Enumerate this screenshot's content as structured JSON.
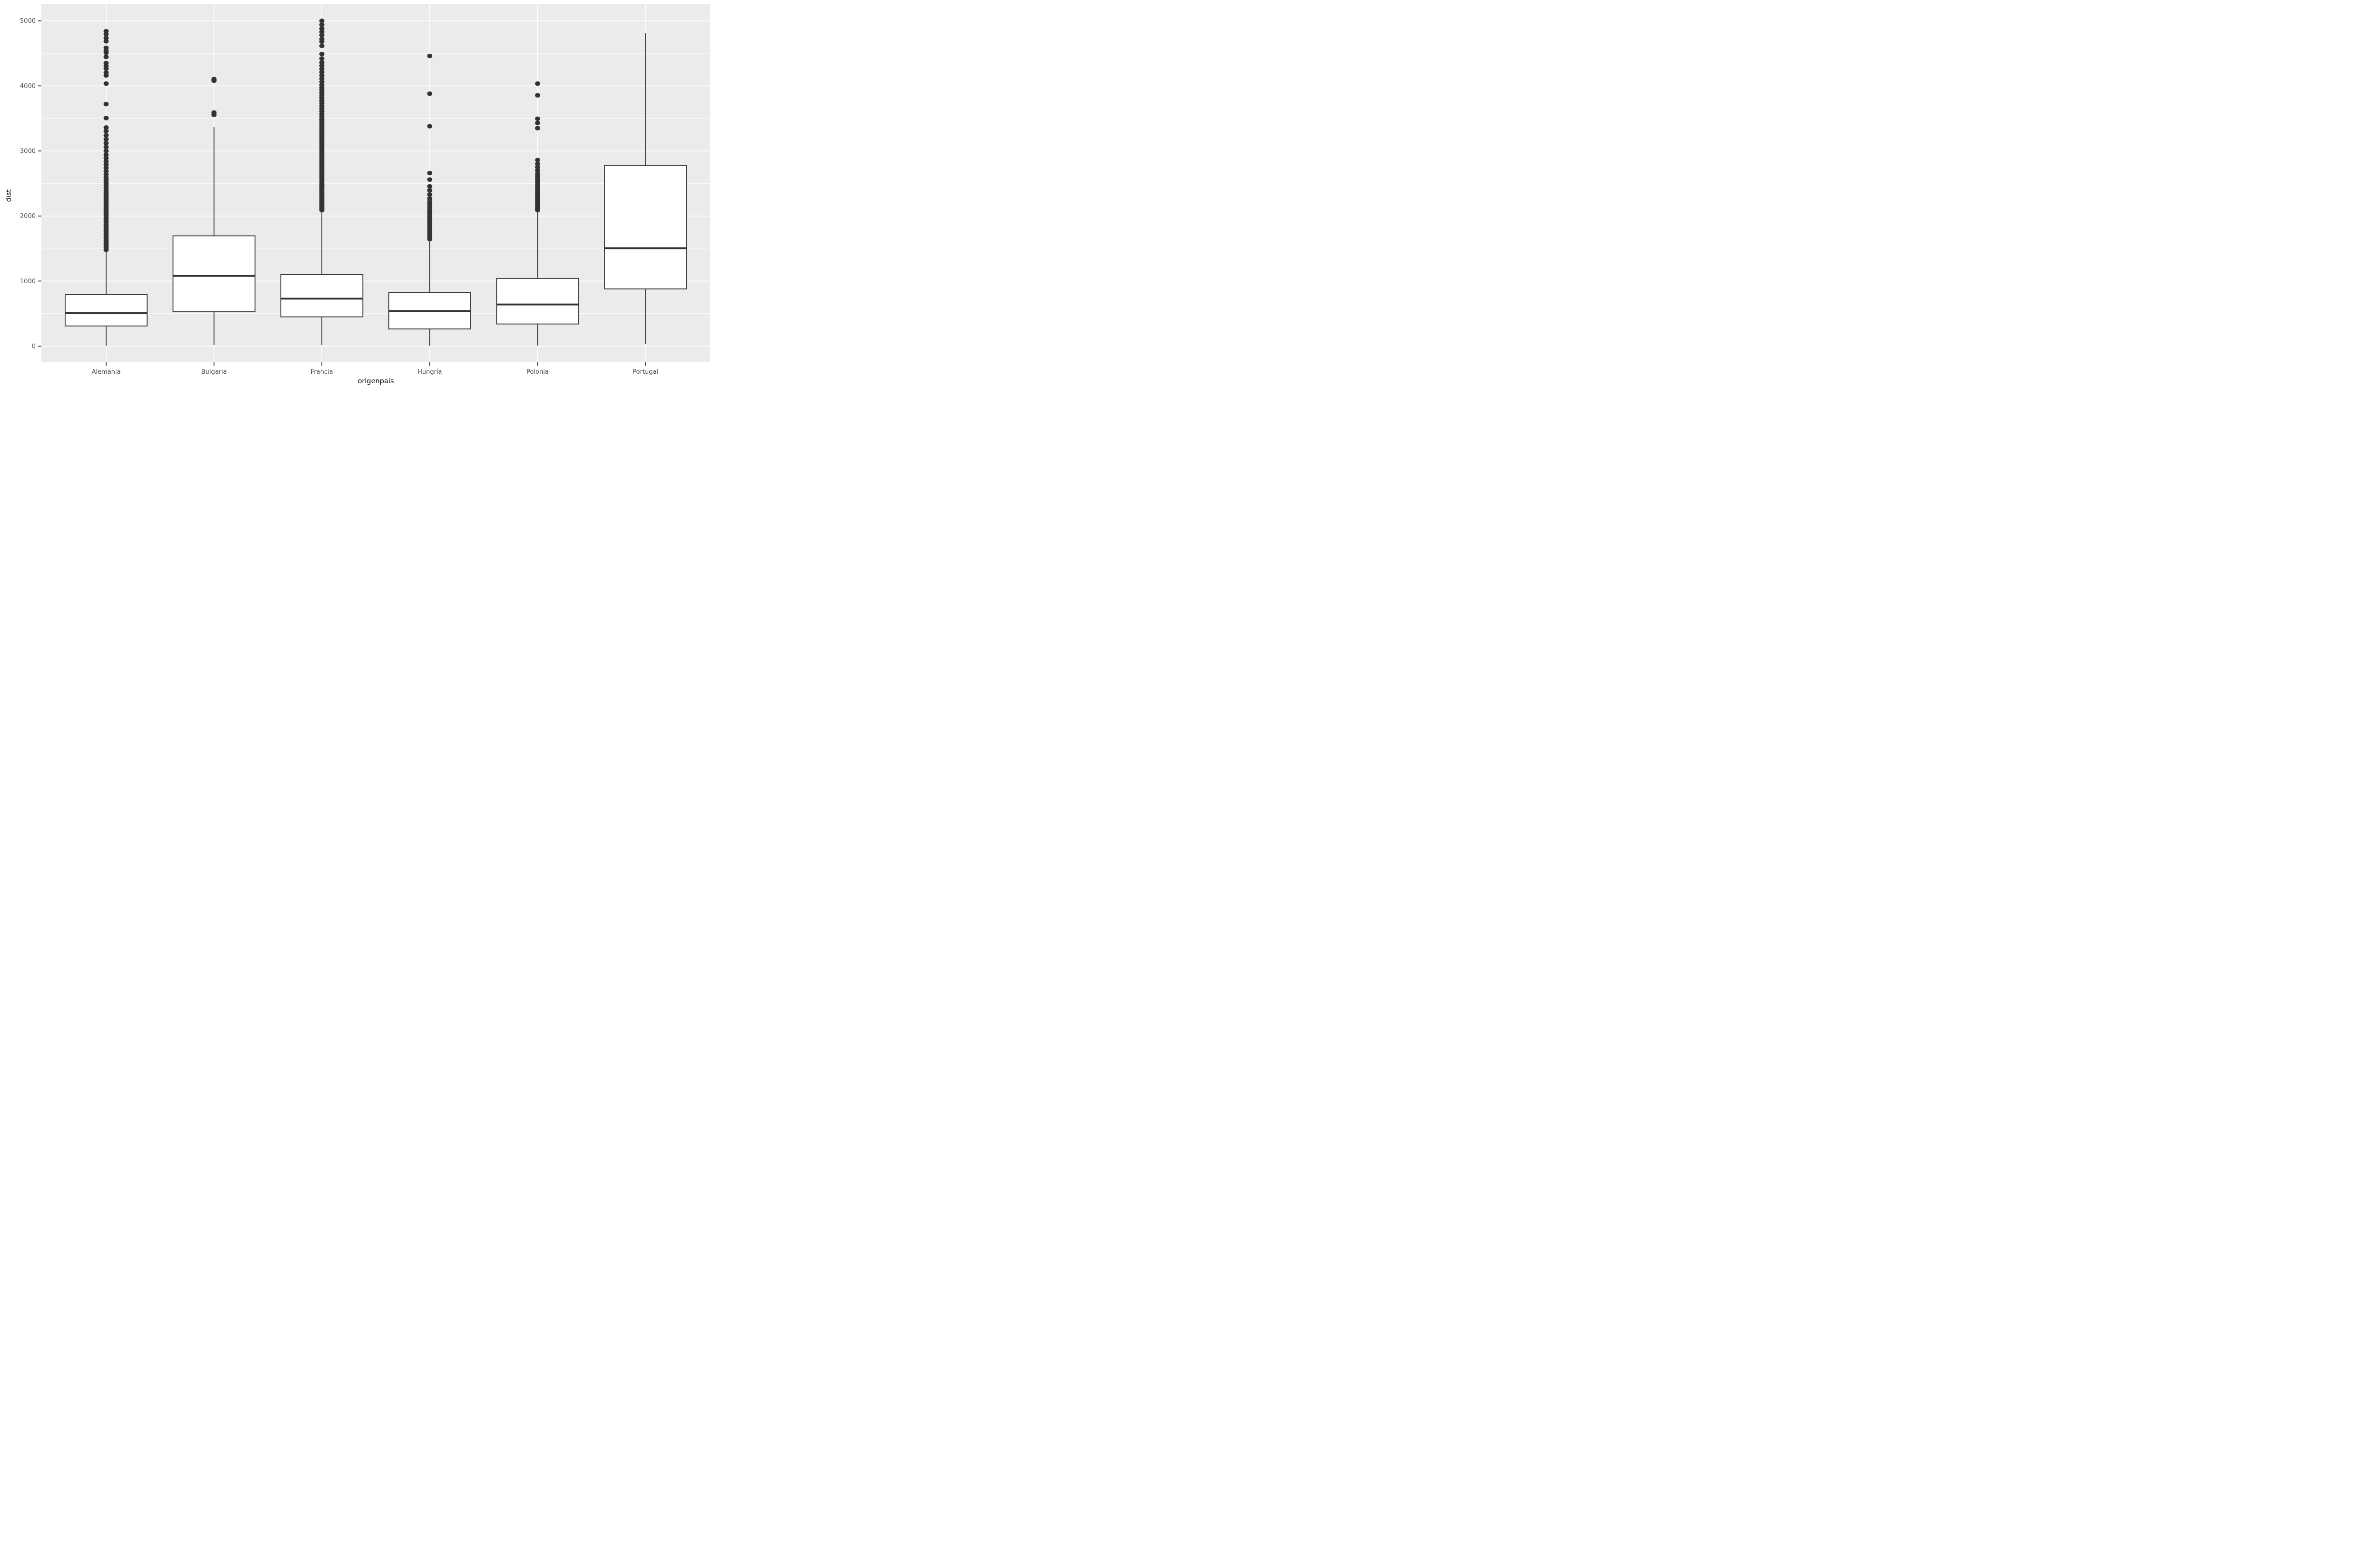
{
  "style": {
    "panel_bg": "#EBEBEB",
    "grid_color": "#FFFFFF",
    "box_stroke": "#333333",
    "box_fill": "#FFFFFF",
    "outlier_color": "#333333",
    "tick_label_color": "#4D4D4D",
    "axis_title_color": "#000000",
    "tick_mark_color": "#333333"
  },
  "chart_data": {
    "type": "boxplot",
    "title": "",
    "xlabel": "origenpais",
    "ylabel": "dist",
    "ylim": [
      -250,
      5260
    ],
    "grid": "on",
    "legend": "none",
    "y_major_ticks": [
      0,
      1000,
      2000,
      3000,
      4000,
      5000
    ],
    "y_minor_ticks": [
      500,
      1500,
      2500,
      3500,
      4500
    ],
    "categories": [
      "Alemania",
      "Bulgaria",
      "Francia",
      "Hungría",
      "Polonia",
      "Portugal"
    ],
    "series": [
      {
        "name": "Alemania",
        "whisker_low": 5,
        "q1": 310,
        "median": 510,
        "q3": 795,
        "whisker_high": 1465,
        "outliers": [
          1480,
          1515,
          1550,
          1585,
          1620,
          1655,
          1690,
          1725,
          1760,
          1795,
          1830,
          1865,
          1900,
          1935,
          1970,
          2005,
          2040,
          2075,
          2110,
          2145,
          2180,
          2215,
          2250,
          2285,
          2320,
          2355,
          2390,
          2430,
          2470,
          2510,
          2550,
          2590,
          2640,
          2690,
          2740,
          2790,
          2840,
          2890,
          2940,
          3000,
          3060,
          3120,
          3180,
          3240,
          3305,
          3360,
          3505,
          3720,
          4035,
          4160,
          4205,
          4265,
          4305,
          4350,
          4445,
          4510,
          4540,
          4585,
          4685,
          4735,
          4795,
          4840
        ]
      },
      {
        "name": "Bulgaria",
        "whisker_low": 20,
        "q1": 530,
        "median": 1080,
        "q3": 1695,
        "whisker_high": 3365,
        "outliers": [
          3555,
          3590,
          4080,
          4105
        ]
      },
      {
        "name": "Francia",
        "whisker_low": 15,
        "q1": 450,
        "median": 730,
        "q3": 1100,
        "whisker_high": 2080,
        "outliers": [
          2090,
          2120,
          2150,
          2180,
          2210,
          2240,
          2270,
          2300,
          2330,
          2360,
          2390,
          2420,
          2450,
          2480,
          2510,
          2545,
          2580,
          2615,
          2650,
          2685,
          2720,
          2755,
          2790,
          2825,
          2860,
          2895,
          2930,
          2965,
          3000,
          3035,
          3070,
          3105,
          3140,
          3175,
          3210,
          3245,
          3280,
          3315,
          3350,
          3385,
          3420,
          3455,
          3490,
          3530,
          3570,
          3610,
          3650,
          3690,
          3730,
          3770,
          3810,
          3850,
          3890,
          3930,
          3970,
          4010,
          4060,
          4110,
          4160,
          4210,
          4260,
          4310,
          4360,
          4420,
          4490,
          4615,
          4680,
          4720,
          4780,
          4830,
          4880,
          4940,
          5000
        ]
      },
      {
        "name": "Hungría",
        "whisker_low": 5,
        "q1": 265,
        "median": 540,
        "q3": 825,
        "whisker_high": 1635,
        "outliers": [
          1645,
          1680,
          1715,
          1750,
          1785,
          1820,
          1855,
          1890,
          1925,
          1960,
          1995,
          2030,
          2065,
          2100,
          2140,
          2180,
          2220,
          2270,
          2330,
          2395,
          2455,
          2560,
          2660,
          3380,
          3880,
          4460
        ]
      },
      {
        "name": "Polonia",
        "whisker_low": 10,
        "q1": 340,
        "median": 640,
        "q3": 1040,
        "whisker_high": 2070,
        "outliers": [
          2090,
          2120,
          2150,
          2180,
          2210,
          2240,
          2270,
          2300,
          2330,
          2360,
          2390,
          2420,
          2450,
          2490,
          2530,
          2570,
          2610,
          2650,
          2700,
          2750,
          2800,
          2860,
          3350,
          3430,
          3495,
          3855,
          4035
        ]
      },
      {
        "name": "Portugal",
        "whisker_low": 30,
        "q1": 880,
        "median": 1505,
        "q3": 2780,
        "whisker_high": 4810,
        "outliers": []
      }
    ]
  }
}
